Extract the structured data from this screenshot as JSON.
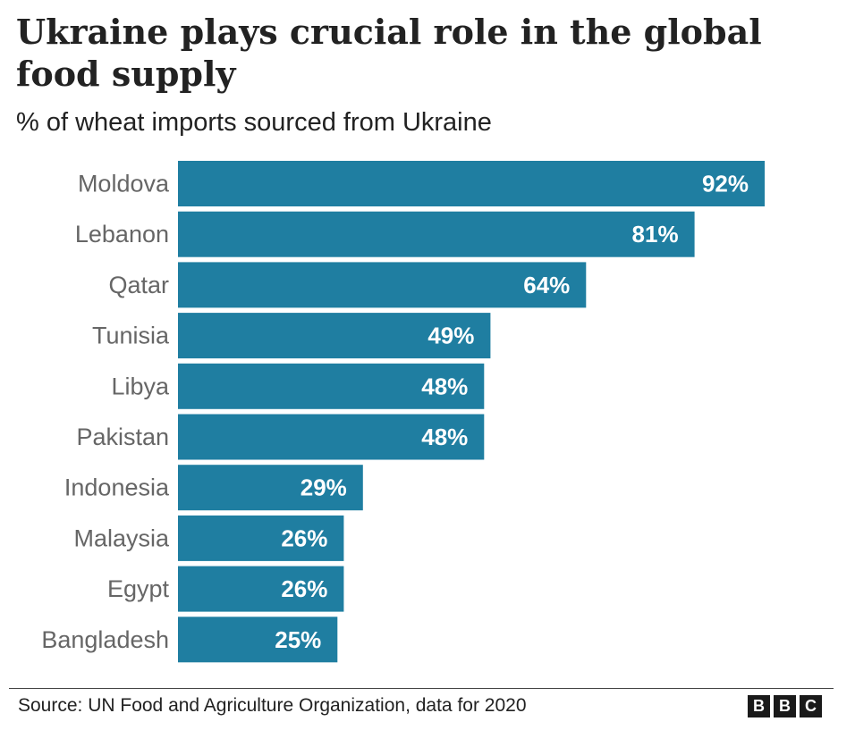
{
  "chart_data": {
    "type": "bar",
    "orientation": "horizontal",
    "title": "Ukraine plays crucial role in the global food supply",
    "subtitle": "% of wheat imports sourced from Ukraine",
    "categories": [
      "Moldova",
      "Lebanon",
      "Qatar",
      "Tunisia",
      "Libya",
      "Pakistan",
      "Indonesia",
      "Malaysia",
      "Egypt",
      "Bangladesh"
    ],
    "values": [
      92,
      81,
      64,
      49,
      48,
      48,
      29,
      26,
      26,
      25
    ],
    "value_labels": [
      "92%",
      "81%",
      "64%",
      "49%",
      "48%",
      "48%",
      "29%",
      "26%",
      "26%",
      "25%"
    ],
    "unit": "%",
    "xlim": [
      0,
      92
    ],
    "bar_color": "#1f7ea1",
    "value_label_color": "#ffffff",
    "grid": false,
    "legend": "none"
  },
  "footer": {
    "source": "Source: UN Food and Agriculture Organization, data for 2020",
    "logo_letters": [
      "B",
      "B",
      "C"
    ]
  }
}
